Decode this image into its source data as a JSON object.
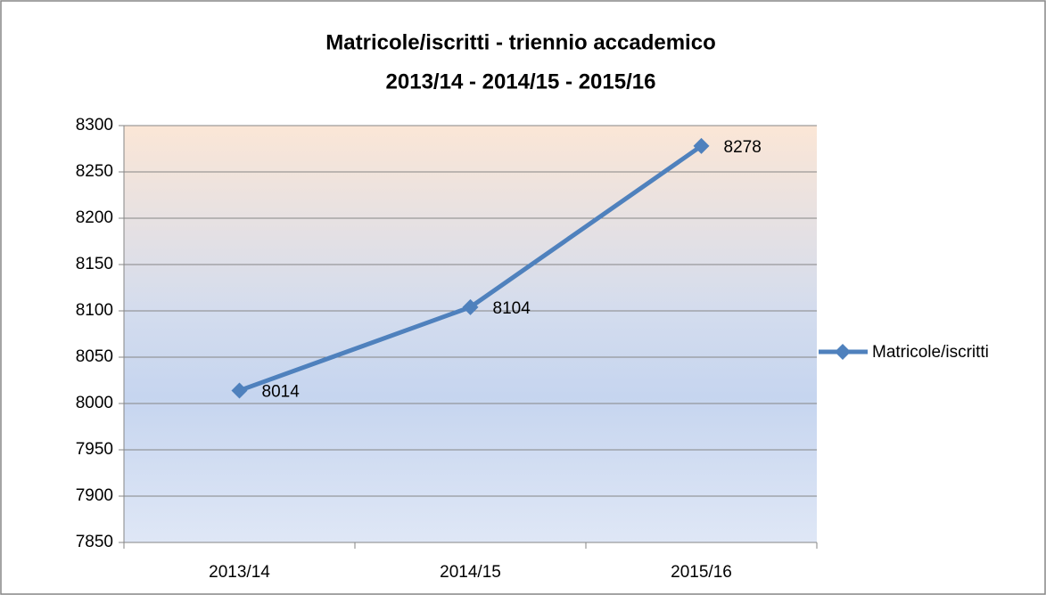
{
  "chart_data": {
    "type": "line",
    "title": [
      "Matricole/iscritti - triennio accademico",
      "2013/14 - 2014/15 - 2015/16"
    ],
    "categories": [
      "2013/14",
      "2014/15",
      "2015/16"
    ],
    "series": [
      {
        "name": "Matricole/iscritti",
        "color": "#4f81bd",
        "values": [
          8014,
          8104,
          8278
        ]
      }
    ],
    "ylim": [
      7850,
      8300
    ],
    "yticks": [
      7850,
      7900,
      7950,
      8000,
      8050,
      8100,
      8150,
      8200,
      8250,
      8300
    ],
    "grid": true,
    "legend": "right",
    "data_labels": true
  }
}
